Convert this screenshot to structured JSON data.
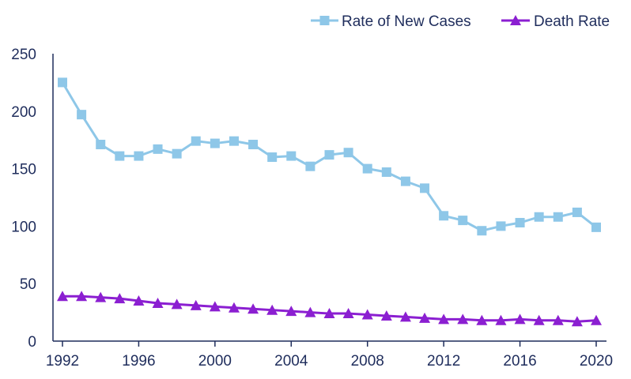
{
  "chart_data": {
    "type": "line",
    "title": "",
    "xlabel": "",
    "ylabel": "",
    "x": [
      1992,
      1993,
      1994,
      1995,
      1996,
      1997,
      1998,
      1999,
      2000,
      2001,
      2002,
      2003,
      2004,
      2005,
      2006,
      2007,
      2008,
      2009,
      2010,
      2011,
      2012,
      2013,
      2014,
      2015,
      2016,
      2017,
      2018,
      2019,
      2020
    ],
    "xlim": [
      1992,
      2020
    ],
    "ylim": [
      0,
      250
    ],
    "y_ticks": [
      "0",
      "50",
      "100",
      "150",
      "200",
      "250"
    ],
    "x_ticks": [
      "1992",
      "1996",
      "2000",
      "2004",
      "2008",
      "2012",
      "2016",
      "2020"
    ],
    "grid": false,
    "legend_position": "top-right",
    "series": [
      {
        "name": "Rate of New Cases",
        "color": "#8ec7e8",
        "marker": "square",
        "values": [
          225,
          197,
          171,
          161,
          161,
          167,
          163,
          174,
          172,
          174,
          171,
          160,
          161,
          152,
          162,
          164,
          150,
          147,
          139,
          133,
          109,
          105,
          96,
          100,
          103,
          108,
          108,
          112,
          99
        ]
      },
      {
        "name": "Death Rate",
        "color": "#8b1fd1",
        "marker": "triangle",
        "values": [
          39,
          39,
          38,
          37,
          35,
          33,
          32,
          31,
          30,
          29,
          28,
          27,
          26,
          25,
          24,
          24,
          23,
          22,
          21,
          20,
          19,
          19,
          18,
          18,
          19,
          18,
          18,
          17,
          18
        ]
      }
    ]
  }
}
